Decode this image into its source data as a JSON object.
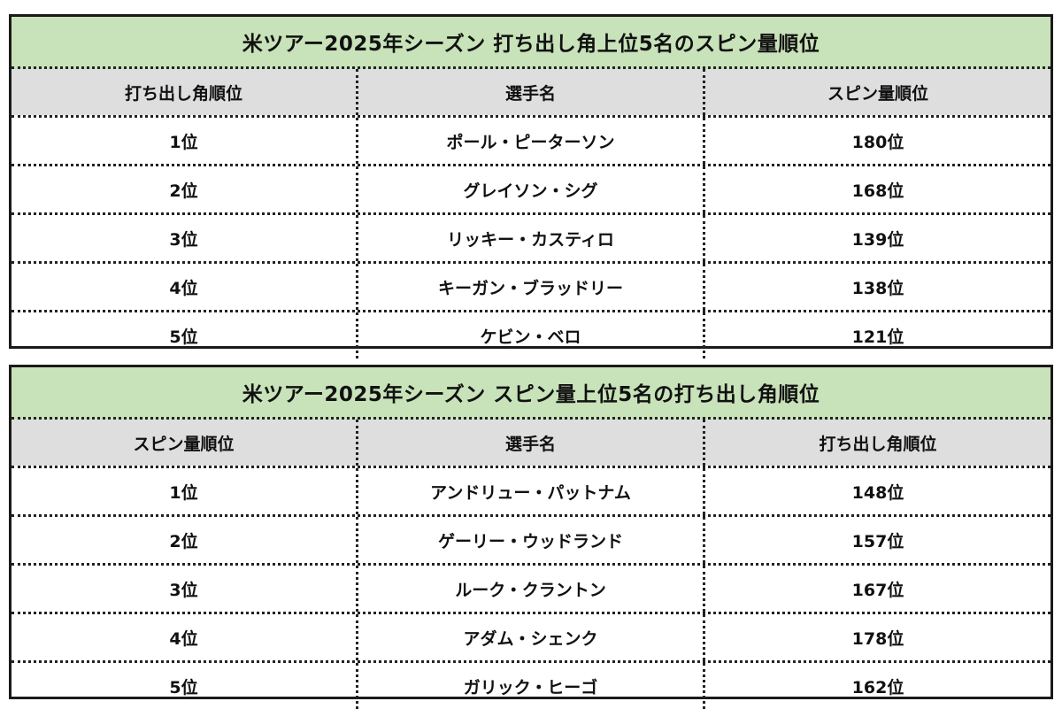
{
  "tables": [
    {
      "title": "米ツアー2025年シーズン 打ち出し角上位5名のスピン量順位",
      "headers": [
        "打ち出し角順位",
        "選手名",
        "スピン量順位"
      ],
      "rows": [
        [
          "1位",
          "ポール・ピーターソン",
          "180位"
        ],
        [
          "2位",
          "グレイソン・シグ",
          "168位"
        ],
        [
          "3位",
          "リッキー・カスティロ",
          "139位"
        ],
        [
          "4位",
          "キーガン・ブラッドリー",
          "138位"
        ],
        [
          "5位",
          "ケビン・ベロ",
          "121位"
        ]
      ]
    },
    {
      "title": "米ツアー2025年シーズン スピン量上位5名の打ち出し角順位",
      "headers": [
        "スピン量順位",
        "選手名",
        "打ち出し角順位"
      ],
      "rows": [
        [
          "1位",
          "アンドリュー・パットナム",
          "148位"
        ],
        [
          "2位",
          "ゲーリー・ウッドランド",
          "157位"
        ],
        [
          "3位",
          "ルーク・クラントン",
          "167位"
        ],
        [
          "4位",
          "アダム・シェンク",
          "178位"
        ],
        [
          "5位",
          "ガリック・ヒーゴ",
          "162位"
        ]
      ]
    }
  ],
  "colors": {
    "title_bg": "#c8e2b9",
    "header_bg": "#dedede",
    "border": "#1a1a1a"
  }
}
